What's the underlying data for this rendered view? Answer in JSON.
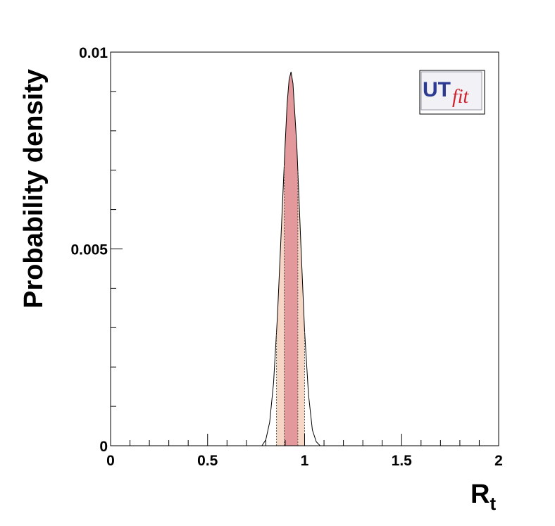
{
  "chart_data": {
    "type": "area",
    "title": "",
    "xlabel": "R",
    "xlabel_subscript": "t",
    "ylabel": "Probability density",
    "xlim": [
      0,
      2
    ],
    "ylim": [
      0,
      0.01
    ],
    "x_ticks": [
      0,
      0.5,
      1,
      1.5,
      2
    ],
    "x_tick_labels": [
      "0",
      "0.5",
      "1",
      "1.5",
      "2"
    ],
    "y_ticks": [
      0,
      0.005,
      0.01
    ],
    "y_tick_labels": [
      "0",
      "0.005",
      "0.01"
    ],
    "grid": false,
    "distribution": {
      "x": [
        0.78,
        0.8,
        0.82,
        0.84,
        0.86,
        0.88,
        0.9,
        0.91,
        0.92,
        0.93,
        0.94,
        0.96,
        0.98,
        1.0,
        1.02,
        1.04,
        1.06,
        1.08
      ],
      "y": [
        0.0,
        0.00015,
        0.0006,
        0.0016,
        0.0033,
        0.0055,
        0.0077,
        0.0087,
        0.0093,
        0.0095,
        0.0092,
        0.0076,
        0.0052,
        0.0029,
        0.0013,
        0.0004,
        0.0001,
        0.0
      ]
    },
    "peak_x": 0.93,
    "peak_y": 0.0095,
    "interval_68": [
      0.895,
      0.965
    ],
    "interval_95": [
      0.855,
      1.0
    ],
    "colors": {
      "interval_68": "#e3999b",
      "interval_95": "#f6d6c4",
      "curve": "#000000"
    }
  },
  "logo": {
    "text_main": "UT",
    "text_sub": "fit",
    "main_color": "#2c3a92",
    "sub_color": "#d0202a"
  }
}
